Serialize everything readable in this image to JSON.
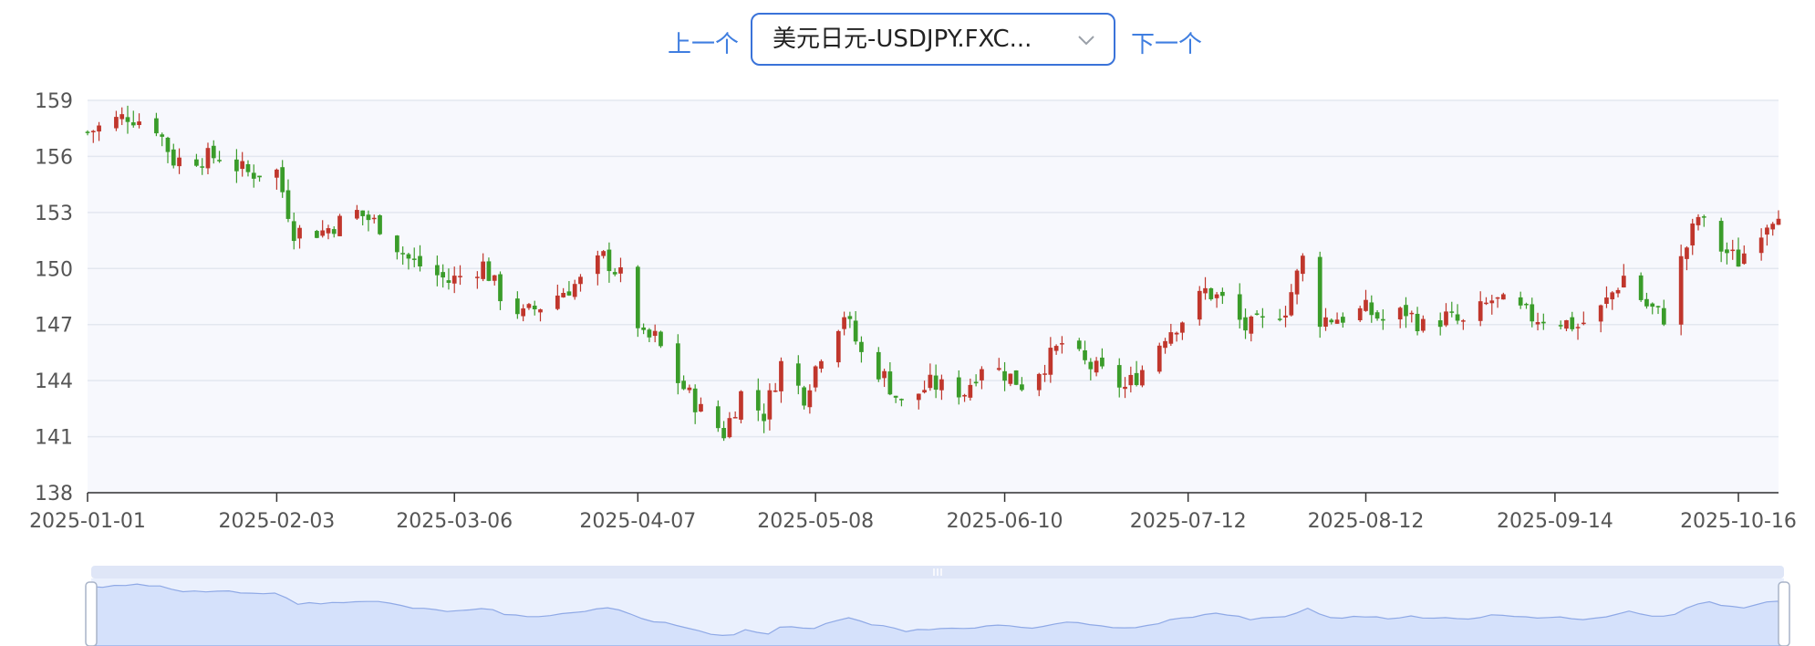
{
  "nav": {
    "prev_label": "上一个",
    "next_label": "下一个",
    "selected_symbol": "美元日元-USDJPY.FXC...",
    "chevron_icon": "chevron-down-icon"
  },
  "colors": {
    "up": "#c0362c",
    "down": "#3a9c2a",
    "accent": "#3a73d9",
    "grid": "#e3e7f0",
    "plot_bg": "#f7f8fd",
    "navigator_fill": "#d5e1fb",
    "navigator_line": "#8fa9e6"
  },
  "chart_data": {
    "type": "candlestick",
    "title": "",
    "ylim": [
      138,
      159
    ],
    "y_ticks": [
      159,
      156,
      153,
      150,
      147,
      144,
      141,
      138
    ],
    "x_range": [
      "2025-01-01",
      "2025-10-23"
    ],
    "x_ticks": [
      "2025-01-01",
      "2025-02-03",
      "2025-03-06",
      "2025-04-07",
      "2025-05-08",
      "2025-06-10",
      "2025-07-12",
      "2025-08-12",
      "2025-09-14",
      "2025-10-16"
    ],
    "grid": true,
    "candle_colors": {
      "up": "red",
      "down": "green"
    },
    "close_series": [
      [
        "2025-01-01",
        157.3
      ],
      [
        "2025-01-08",
        158.2
      ],
      [
        "2025-01-13",
        157.6
      ],
      [
        "2025-01-16",
        155.8
      ],
      [
        "2025-01-24",
        156.0
      ],
      [
        "2025-01-29",
        155.1
      ],
      [
        "2025-02-03",
        155.2
      ],
      [
        "2025-02-06",
        152.0
      ],
      [
        "2025-02-11",
        152.0
      ],
      [
        "2025-02-17",
        153.0
      ],
      [
        "2025-02-21",
        152.3
      ],
      [
        "2025-02-26",
        150.5
      ],
      [
        "2025-03-05",
        149.3
      ],
      [
        "2025-03-11",
        150.2
      ],
      [
        "2025-03-14",
        148.6
      ],
      [
        "2025-03-18",
        147.5
      ],
      [
        "2025-03-21",
        148.0
      ],
      [
        "2025-03-25",
        148.8
      ],
      [
        "2025-03-28",
        149.3
      ],
      [
        "2025-04-01",
        150.6
      ],
      [
        "2025-04-04",
        149.6
      ],
      [
        "2025-04-08",
        146.2
      ],
      [
        "2025-04-10",
        146.3
      ],
      [
        "2025-04-14",
        144.0
      ],
      [
        "2025-04-18",
        142.4
      ],
      [
        "2025-04-22",
        141.2
      ],
      [
        "2025-04-25",
        143.3
      ],
      [
        "2025-04-29",
        142.2
      ],
      [
        "2025-05-02",
        144.9
      ],
      [
        "2025-05-06",
        143.2
      ],
      [
        "2025-05-09",
        145.5
      ],
      [
        "2025-05-13",
        147.6
      ],
      [
        "2025-05-16",
        145.4
      ],
      [
        "2025-05-20",
        144.2
      ],
      [
        "2025-05-23",
        142.7
      ],
      [
        "2025-05-28",
        143.8
      ],
      [
        "2025-06-03",
        143.4
      ],
      [
        "2025-06-06",
        144.9
      ],
      [
        "2025-06-10",
        144.4
      ],
      [
        "2025-06-13",
        143.8
      ],
      [
        "2025-06-17",
        144.9
      ],
      [
        "2025-06-20",
        146.0
      ],
      [
        "2025-06-24",
        144.9
      ],
      [
        "2025-06-27",
        144.4
      ],
      [
        "2025-07-01",
        143.6
      ],
      [
        "2025-07-04",
        144.6
      ],
      [
        "2025-07-08",
        146.5
      ],
      [
        "2025-07-11",
        147.3
      ],
      [
        "2025-07-15",
        148.8
      ],
      [
        "2025-07-18",
        148.3
      ],
      [
        "2025-07-22",
        146.8
      ],
      [
        "2025-07-25",
        147.1
      ],
      [
        "2025-07-29",
        147.9
      ],
      [
        "2025-08-01",
        150.5
      ],
      [
        "2025-08-04",
        147.3
      ],
      [
        "2025-08-08",
        147.4
      ],
      [
        "2025-08-12",
        147.8
      ],
      [
        "2025-08-15",
        147.2
      ],
      [
        "2025-08-19",
        147.7
      ],
      [
        "2025-08-22",
        146.9
      ],
      [
        "2025-08-26",
        147.4
      ],
      [
        "2025-08-29",
        147.0
      ],
      [
        "2025-09-03",
        148.3
      ],
      [
        "2025-09-06",
        148.0
      ],
      [
        "2025-09-10",
        147.4
      ],
      [
        "2025-09-14",
        147.3
      ],
      [
        "2025-09-18",
        146.9
      ],
      [
        "2025-09-22",
        147.8
      ],
      [
        "2025-09-26",
        149.6
      ],
      [
        "2025-09-30",
        148.0
      ],
      [
        "2025-10-03",
        147.4
      ],
      [
        "2025-10-06",
        150.4
      ],
      [
        "2025-10-09",
        152.8
      ],
      [
        "2025-10-12",
        151.3
      ],
      [
        "2025-10-16",
        150.4
      ],
      [
        "2025-10-20",
        152.2
      ],
      [
        "2025-10-23",
        153.2
      ]
    ]
  }
}
